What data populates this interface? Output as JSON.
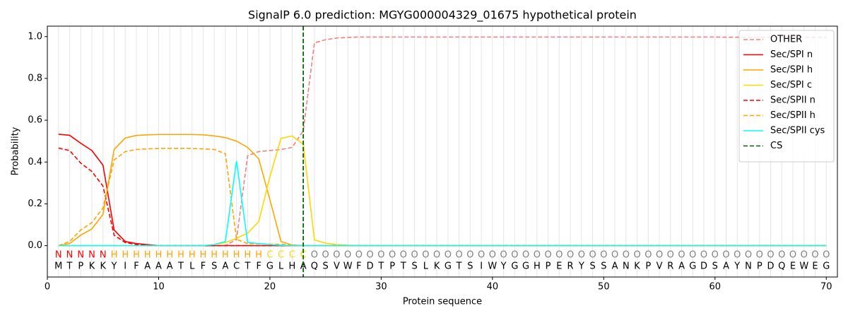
{
  "chart_data": {
    "type": "line",
    "title": "SignalP 6.0 prediction: MGYG000004329_01675 hypothetical protein",
    "xlabel": "Protein sequence",
    "ylabel": "Probability",
    "xlim": [
      0,
      71
    ],
    "ylim": [
      -0.15,
      1.05
    ],
    "xticks": [
      0,
      10,
      20,
      30,
      40,
      50,
      60,
      70
    ],
    "yticks": [
      {
        "value": 0,
        "label": "0.0"
      },
      {
        "value": 0.2,
        "label": "0.2"
      },
      {
        "value": 0.4,
        "label": "0.4"
      },
      {
        "value": 0.6,
        "label": "0.6"
      },
      {
        "value": 0.8,
        "label": "0.8"
      },
      {
        "value": 1,
        "label": "1.0"
      }
    ],
    "grid": true,
    "legend": "upper right",
    "x": [
      1,
      2,
      3,
      4,
      5,
      6,
      7,
      8,
      9,
      10,
      11,
      12,
      13,
      14,
      15,
      16,
      17,
      18,
      19,
      20,
      21,
      22,
      23,
      24,
      25,
      26,
      27,
      28,
      29,
      30,
      31,
      32,
      33,
      34,
      35,
      36,
      37,
      38,
      39,
      40,
      41,
      42,
      43,
      44,
      45,
      46,
      47,
      48,
      49,
      50,
      51,
      52,
      53,
      54,
      55,
      56,
      57,
      58,
      59,
      60,
      61,
      62,
      63,
      64,
      65,
      66,
      67,
      68,
      69,
      70
    ],
    "residues": [
      "M",
      "T",
      "P",
      "K",
      "K",
      "Y",
      "I",
      "F",
      "A",
      "A",
      "A",
      "T",
      "L",
      "F",
      "S",
      "A",
      "C",
      "T",
      "F",
      "G",
      "L",
      "H",
      "A",
      "Q",
      "S",
      "V",
      "W",
      "F",
      "D",
      "T",
      "P",
      "T",
      "S",
      "L",
      "K",
      "G",
      "T",
      "S",
      "I",
      "W",
      "Y",
      "G",
      "G",
      "H",
      "P",
      "E",
      "R",
      "Y",
      "S",
      "S",
      "A",
      "N",
      "K",
      "P",
      "V",
      "R",
      "A",
      "G",
      "D",
      "S",
      "A",
      "Y",
      "N",
      "P",
      "D",
      "Q",
      "E",
      "W",
      "E",
      "G"
    ],
    "regions": [
      "N",
      "N",
      "N",
      "N",
      "N",
      "H",
      "H",
      "H",
      "H",
      "H",
      "H",
      "H",
      "H",
      "H",
      "H",
      "H",
      "H",
      "H",
      "H",
      "C",
      "C",
      "C",
      "C",
      "O",
      "O",
      "O",
      "O",
      "O",
      "O",
      "O",
      "O",
      "O",
      "O",
      "O",
      "O",
      "O",
      "O",
      "O",
      "O",
      "O",
      "O",
      "O",
      "O",
      "O",
      "O",
      "O",
      "O",
      "O",
      "O",
      "O",
      "O",
      "O",
      "O",
      "O",
      "O",
      "O",
      "O",
      "O",
      "O",
      "O",
      "O",
      "O",
      "O",
      "O",
      "O",
      "O",
      "O",
      "O",
      "O",
      "O"
    ],
    "region_colors": {
      "N": "#ff0000",
      "H": "#ffa500",
      "C": "#ffd700",
      "O": "#808080"
    },
    "series": [
      {
        "name": "OTHER",
        "color": "#f08080",
        "dashed": true,
        "values": [
          0,
          0,
          0,
          0,
          0,
          0,
          0,
          0,
          0,
          0,
          0,
          0,
          0,
          0,
          0,
          0,
          0.03,
          0.43,
          0.45,
          0.455,
          0.46,
          0.47,
          0.55,
          0.97,
          0.985,
          0.993,
          0.996,
          0.998,
          0.998,
          0.998,
          0.998,
          0.998,
          0.998,
          0.998,
          0.998,
          0.998,
          0.998,
          0.998,
          0.998,
          0.998,
          0.998,
          0.998,
          0.998,
          0.998,
          0.998,
          0.998,
          0.998,
          0.998,
          0.998,
          0.998,
          0.998,
          0.998,
          0.998,
          0.998,
          0.998,
          0.998,
          0.998,
          0.998,
          0.998,
          0.998,
          0.997,
          0.997,
          0.997,
          0.997,
          0.997,
          0.997,
          0.997,
          0.997,
          0.997,
          0.997
        ]
      },
      {
        "name": "Sec/SPI n",
        "color": "#ff0000",
        "dashed": false,
        "values": [
          0.533,
          0.528,
          0.49,
          0.455,
          0.385,
          0.075,
          0.02,
          0.01,
          0.005,
          0,
          0,
          0,
          0,
          0,
          0,
          0,
          0,
          0,
          0,
          0,
          0,
          0,
          0,
          0,
          0,
          0,
          0,
          0,
          0,
          0,
          0,
          0,
          0,
          0,
          0,
          0,
          0,
          0,
          0,
          0,
          0,
          0,
          0,
          0,
          0,
          0,
          0,
          0,
          0,
          0,
          0,
          0,
          0,
          0,
          0,
          0,
          0,
          0,
          0,
          0,
          0,
          0,
          0,
          0,
          0,
          0,
          0,
          0,
          0,
          0
        ]
      },
      {
        "name": "Sec/SPI h",
        "color": "#ffa500",
        "dashed": false,
        "values": [
          0,
          0.01,
          0.05,
          0.08,
          0.15,
          0.46,
          0.515,
          0.527,
          0.53,
          0.532,
          0.532,
          0.532,
          0.532,
          0.53,
          0.525,
          0.517,
          0.5,
          0.47,
          0.415,
          0.22,
          0.02,
          0.003,
          0,
          0,
          0,
          0,
          0,
          0,
          0,
          0,
          0,
          0,
          0,
          0,
          0,
          0,
          0,
          0,
          0,
          0,
          0,
          0,
          0,
          0,
          0,
          0,
          0,
          0,
          0,
          0,
          0,
          0,
          0,
          0,
          0,
          0,
          0,
          0,
          0,
          0,
          0,
          0,
          0,
          0,
          0,
          0,
          0,
          0,
          0,
          0
        ]
      },
      {
        "name": "Sec/SPI c",
        "color": "#ffd700",
        "dashed": false,
        "values": [
          0,
          0,
          0,
          0,
          0,
          0,
          0,
          0,
          0,
          0,
          0,
          0,
          0,
          0,
          0.005,
          0.015,
          0.035,
          0.06,
          0.115,
          0.33,
          0.513,
          0.525,
          0.485,
          0.028,
          0.012,
          0.005,
          0.002,
          0,
          0,
          0,
          0,
          0,
          0,
          0,
          0,
          0,
          0,
          0,
          0,
          0,
          0,
          0,
          0,
          0,
          0,
          0,
          0,
          0,
          0,
          0,
          0,
          0,
          0,
          0,
          0,
          0,
          0,
          0,
          0,
          0,
          0,
          0,
          0,
          0,
          0,
          0,
          0,
          0,
          0,
          0
        ]
      },
      {
        "name": "Sec/SPII n",
        "color": "#ff0000",
        "dashed": true,
        "values": [
          0.467,
          0.455,
          0.395,
          0.355,
          0.285,
          0.05,
          0.015,
          0.005,
          0,
          0,
          0,
          0,
          0,
          0,
          0,
          0,
          0,
          0,
          0,
          0,
          0,
          0,
          0,
          0,
          0,
          0,
          0,
          0,
          0,
          0,
          0,
          0,
          0,
          0,
          0,
          0,
          0,
          0,
          0,
          0,
          0,
          0,
          0,
          0,
          0,
          0,
          0,
          0,
          0,
          0,
          0,
          0,
          0,
          0,
          0,
          0,
          0,
          0,
          0,
          0,
          0,
          0,
          0,
          0,
          0,
          0,
          0,
          0,
          0,
          0
        ]
      },
      {
        "name": "Sec/SPII h",
        "color": "#ffa500",
        "dashed": true,
        "values": [
          0,
          0.02,
          0.075,
          0.11,
          0.18,
          0.41,
          0.45,
          0.46,
          0.463,
          0.465,
          0.465,
          0.465,
          0.465,
          0.463,
          0.46,
          0.44,
          0.03,
          0.01,
          0.008,
          0.007,
          0.006,
          0.003,
          0,
          0,
          0,
          0,
          0,
          0,
          0,
          0,
          0,
          0,
          0,
          0,
          0,
          0,
          0,
          0,
          0,
          0,
          0,
          0,
          0,
          0,
          0,
          0,
          0,
          0,
          0,
          0,
          0,
          0,
          0,
          0,
          0,
          0,
          0,
          0,
          0,
          0,
          0,
          0,
          0,
          0,
          0,
          0,
          0,
          0,
          0,
          0
        ]
      },
      {
        "name": "Sec/SPII cys",
        "color": "#00ffff",
        "dashed": false,
        "values": [
          0,
          0,
          0,
          0,
          0,
          0,
          0,
          0,
          0,
          0,
          0,
          0,
          0,
          0,
          0.005,
          0.02,
          0.405,
          0.015,
          0.01,
          0.005,
          0.002,
          0,
          0,
          0,
          0,
          0,
          0,
          0,
          0,
          0,
          0,
          0,
          0,
          0,
          0,
          0,
          0,
          0,
          0,
          0,
          0,
          0,
          0,
          0,
          0,
          0,
          0,
          0,
          0,
          0,
          0,
          0,
          0,
          0,
          0,
          0,
          0,
          0,
          0,
          0,
          0,
          0,
          0,
          0,
          0,
          0,
          0,
          0,
          0,
          0
        ]
      }
    ],
    "cleavage_site": {
      "name": "CS",
      "color": "#006400",
      "x": 23
    }
  }
}
